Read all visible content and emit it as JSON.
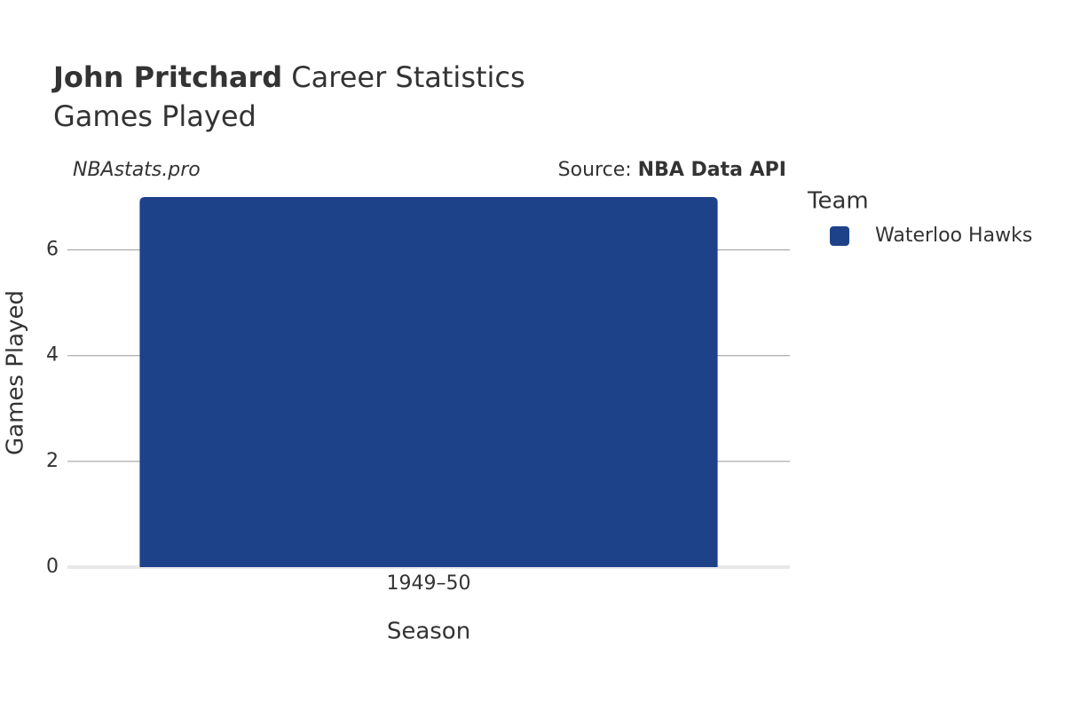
{
  "chart_data": {
    "type": "bar",
    "title_name": "John Pritchard",
    "title": "Career Statistics",
    "subtitle": "Games Played",
    "credit": "NBAstats.pro",
    "source_label": "Source:",
    "source": "NBA Data API",
    "xlabel": "Season",
    "ylabel": "Games Played",
    "legend_title": "Team",
    "categories": [
      "1949–50"
    ],
    "series": [
      {
        "name": "Waterloo Hawks",
        "color": "#1d4289",
        "values": [
          7
        ]
      }
    ],
    "ylim": [
      0,
      7
    ],
    "yticks": [
      0,
      2,
      4,
      6
    ],
    "grid": true
  }
}
